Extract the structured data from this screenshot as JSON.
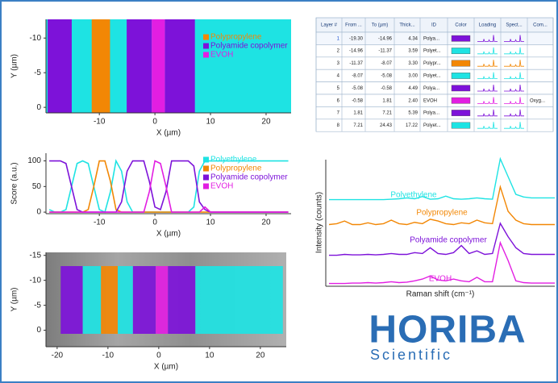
{
  "table": {
    "headers": [
      "Layer #",
      "From ...",
      "To (µm)",
      "Thick...",
      "ID",
      "Color",
      "Loading",
      "Spect...",
      "Com..."
    ],
    "rows": [
      {
        "layer": 1,
        "from": {
          "value": -19.3,
          "label": "-19.30"
        },
        "to": -14.96,
        "thickness": 4.34,
        "id": "Polya...",
        "color": "#7d12d9"
      },
      {
        "layer": 2,
        "from": -14.96,
        "to": -11.37,
        "thickness": 3.59,
        "id": "Polyet...",
        "color": "#1ee3e3"
      },
      {
        "layer": 3,
        "from": -11.37,
        "to": -8.07,
        "thickness": {
          "value": 3.3,
          "label": "3.30"
        },
        "id": "Polypr...",
        "color": "#f28705"
      },
      {
        "layer": 4,
        "from": -8.07,
        "to": -5.08,
        "thickness": {
          "value": 3,
          "label": "3.00"
        },
        "id": "Polyet...",
        "color": "#1ee3e3"
      },
      {
        "layer": 5,
        "from": -5.08,
        "to": -0.58,
        "thickness": 4.49,
        "id": "Polya...",
        "color": "#7d12d9"
      },
      {
        "layer": 6,
        "from": -0.58,
        "to": 1.81,
        "thickness": {
          "value": 2.4,
          "label": "2.40"
        },
        "id": "EVOH",
        "color": "#e21ee2",
        "comment": "Oxyg..."
      },
      {
        "layer": 7,
        "from": 1.81,
        "to": 7.21,
        "thickness": 5.39,
        "id": "Polya...",
        "color": "#7d12d9"
      },
      {
        "layer": 8,
        "from": 7.21,
        "to": 24.43,
        "thickness": 17.22,
        "id": "Polyet...",
        "color": "#1ee3e3"
      }
    ]
  },
  "chart_data": [
    {
      "type": "layer-map",
      "x_label": "X (µm)",
      "y_label": "Y (µm)",
      "xlim": [
        -19.6,
        24.5
      ],
      "ylim": [
        0.8,
        -12.7
      ],
      "xticks": [
        -10,
        0,
        10,
        20
      ],
      "yticks": [
        -10,
        -5,
        0
      ],
      "legend": [
        {
          "name": "Polypropylene",
          "color": "#f28705"
        },
        {
          "name": "Polyamide copolymer",
          "color": "#7d12d9"
        },
        {
          "name": "EVOH",
          "color": "#e21ee2"
        }
      ]
    },
    {
      "type": "line",
      "x_label": "X (µm)",
      "y_label": "Score (a.u.)",
      "xlim": [
        -19.6,
        24.5
      ],
      "ylim": [
        -3,
        115
      ],
      "xticks": [
        -10,
        0,
        10,
        20
      ],
      "yticks": [
        0,
        50,
        100
      ],
      "x": [
        -19,
        -18,
        -17,
        -16,
        -15,
        -14,
        -13,
        -12,
        -11,
        -10,
        -9,
        -8,
        -7,
        -6,
        -5,
        -4,
        -3,
        -2,
        -1,
        0,
        1,
        2,
        3,
        4,
        5,
        6,
        7,
        8,
        9,
        10,
        11,
        12,
        13,
        14,
        15,
        16,
        17,
        18,
        19,
        20,
        21,
        22,
        23,
        24
      ],
      "series": [
        {
          "name": "Polyethylene",
          "color": "#1ee3e3",
          "values": [
            5,
            0,
            0,
            5,
            50,
            95,
            100,
            95,
            50,
            5,
            0,
            40,
            100,
            80,
            20,
            0,
            0,
            0,
            0,
            0,
            0,
            0,
            0,
            0,
            0,
            0,
            10,
            80,
            100,
            100,
            100,
            100,
            100,
            100,
            100,
            100,
            100,
            100,
            100,
            100,
            100,
            100,
            100,
            100
          ]
        },
        {
          "name": "Polypropylene",
          "color": "#f28705",
          "values": [
            0,
            0,
            0,
            0,
            0,
            0,
            0,
            5,
            50,
            100,
            100,
            60,
            5,
            0,
            0,
            0,
            0,
            0,
            0,
            0,
            0,
            0,
            0,
            0,
            0,
            0,
            0,
            0,
            0,
            0,
            0,
            0,
            0,
            0,
            0,
            0,
            0,
            0,
            0,
            0,
            0,
            0,
            0,
            0
          ]
        },
        {
          "name": "Polyamide copolymer",
          "color": "#7d12d9",
          "values": [
            100,
            100,
            100,
            95,
            50,
            5,
            0,
            0,
            0,
            0,
            0,
            0,
            0,
            20,
            80,
            100,
            100,
            100,
            60,
            10,
            5,
            40,
            100,
            100,
            100,
            100,
            90,
            20,
            5,
            0,
            0,
            0,
            0,
            0,
            0,
            0,
            0,
            0,
            0,
            0,
            0,
            0,
            0,
            0
          ]
        },
        {
          "name": "EVOH",
          "color": "#e21ee2",
          "values": [
            0,
            0,
            0,
            0,
            0,
            0,
            0,
            0,
            0,
            0,
            0,
            0,
            0,
            0,
            0,
            0,
            0,
            0,
            40,
            100,
            95,
            50,
            0,
            0,
            0,
            0,
            0,
            0,
            10,
            0,
            0,
            0,
            0,
            0,
            0,
            0,
            0,
            0,
            0,
            0,
            0,
            0,
            0,
            0
          ]
        }
      ]
    },
    {
      "type": "image-overlay",
      "x_label": "X (µm)",
      "y_label": "Y (µm)",
      "xlim": [
        -22.2,
        25.1
      ],
      "ylim": [
        3.3,
        -15.6
      ],
      "xticks": [
        -20,
        -10,
        0,
        10,
        20
      ],
      "yticks": [
        -15,
        -10,
        -5,
        0
      ]
    },
    {
      "type": "spectra",
      "x_label": "Raman shift (cm⁻¹)",
      "y_label": "Intensity (counts)",
      "series": [
        {
          "name": "Polyethylene",
          "color": "#1ee3e3",
          "values": [
            8,
            8,
            8,
            8,
            8,
            8,
            8,
            8,
            9,
            10,
            12,
            10,
            15,
            9,
            10,
            16,
            10,
            9,
            10,
            12,
            10,
            9,
            100,
            60,
            20,
            14,
            12,
            12,
            12,
            12
          ]
        },
        {
          "name": "Polypropylene",
          "color": "#f28705",
          "values": [
            10,
            12,
            18,
            10,
            10,
            14,
            10,
            12,
            20,
            12,
            10,
            15,
            12,
            22,
            18,
            12,
            10,
            14,
            12,
            20,
            14,
            12,
            95,
            40,
            20,
            12,
            10,
            10,
            10,
            10
          ]
        },
        {
          "name": "Polyamide copolymer",
          "color": "#7d12d9",
          "values": [
            8,
            8,
            10,
            9,
            9,
            10,
            9,
            10,
            12,
            10,
            10,
            14,
            12,
            25,
            12,
            10,
            14,
            30,
            12,
            18,
            10,
            12,
            80,
            50,
            25,
            12,
            10,
            10,
            10,
            10
          ]
        },
        {
          "name": "EVOH",
          "color": "#e21ee2",
          "values": [
            8,
            8,
            8,
            9,
            9,
            10,
            9,
            10,
            12,
            10,
            11,
            14,
            18,
            25,
            16,
            14,
            18,
            14,
            12,
            22,
            12,
            12,
            100,
            60,
            14,
            10,
            9,
            9,
            9,
            9
          ]
        }
      ]
    }
  ],
  "logo": {
    "name": "HORIBA",
    "subtitle": "Scientific"
  }
}
